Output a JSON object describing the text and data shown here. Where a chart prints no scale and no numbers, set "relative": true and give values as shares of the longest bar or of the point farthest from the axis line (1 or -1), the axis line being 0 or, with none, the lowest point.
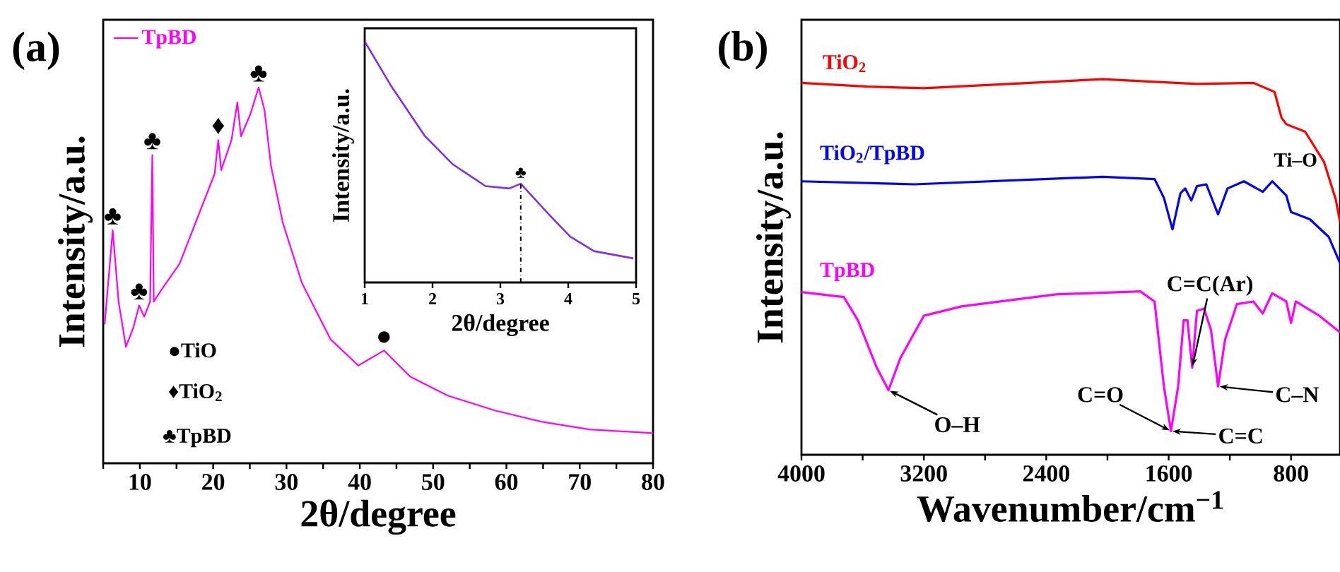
{
  "chart_data": [
    {
      "type": "line",
      "relative": true,
      "xlabel": "2θ/degree",
      "ylabel": "Intensity/a.u.",
      "legend": "top left",
      "xlim": [
        5,
        80
      ],
      "xticks": [
        {
          "value": 5,
          "label": null
        },
        10,
        {
          "value": 15,
          "label": null
        },
        20,
        {
          "value": 25,
          "label": null
        },
        30,
        {
          "value": 35,
          "label": null
        },
        40,
        {
          "value": 45,
          "label": null
        },
        50,
        {
          "value": 55,
          "label": null
        },
        60,
        {
          "value": 65,
          "label": null
        },
        70,
        {
          "value": 75,
          "label": null
        },
        80
      ],
      "series": [
        {
          "name": "TpBD",
          "color": "#ff00ff",
          "x": [
            5.2,
            6.3,
            7.1,
            8.1,
            9.1,
            9.9,
            10.6,
            11.4,
            11.7,
            11.9,
            12.9,
            15.4,
            18,
            20.2,
            20.7,
            21.1,
            22.5,
            23.3,
            23.8,
            25.1,
            26.2,
            27,
            27.9,
            29.5,
            32.1,
            36,
            39.8,
            43.3,
            46.9,
            52,
            58.5,
            64.9,
            71.3,
            80
          ],
          "values": [
            0.37,
            0.62,
            0.43,
            0.31,
            0.36,
            0.42,
            0.39,
            0.43,
            0.82,
            0.43,
            0.46,
            0.53,
            0.66,
            0.77,
            0.86,
            0.78,
            0.86,
            0.96,
            0.87,
            0.93,
            1.0,
            0.94,
            0.79,
            0.64,
            0.48,
            0.33,
            0.26,
            0.3,
            0.23,
            0.18,
            0.14,
            0.11,
            0.09,
            0.08
          ]
        }
      ],
      "annotations": [
        "(a)",
        {
          "text": "♣",
          "x": 6.3,
          "y": 0.62
        },
        {
          "text": "♣",
          "x": 9.9,
          "y": 0.42
        },
        {
          "text": "♣",
          "x": 11.7,
          "y": 0.82
        },
        {
          "text": "♦",
          "x": 20.7,
          "y": 0.86
        },
        {
          "text": "♣",
          "x": 26.2,
          "y": 1.0
        },
        {
          "text": "●",
          "x": 43.3,
          "y": 0.3
        },
        "●TiO",
        "♦TiO$_{2}$",
        "♣TpBD"
      ]
    },
    {
      "type": "line",
      "relative": true,
      "xlabel": "2θ/degree",
      "ylabel": "Intensity/a.u.",
      "xlim": [
        1,
        5
      ],
      "xticks": [
        1,
        2,
        3,
        4,
        5
      ],
      "series": [
        {
          "color": "#7f2fe8",
          "x": [
            1.0,
            1.38,
            1.88,
            2.3,
            2.78,
            3.13,
            3.3,
            3.69,
            4.03,
            4.38,
            4.96
          ],
          "values": [
            1.0,
            0.82,
            0.61,
            0.49,
            0.4,
            0.39,
            0.41,
            0.29,
            0.19,
            0.13,
            0.1
          ]
        }
      ],
      "ref_lines": [
        {
          "axis": "x",
          "value": 3.3,
          "line_style": "dashdot"
        }
      ],
      "annotations": [
        {
          "text": "♣",
          "x": 3.3,
          "y": 0.41
        }
      ]
    },
    {
      "type": "line",
      "relative": true,
      "xlabel": "Wavenumber/cm$^{−1}$",
      "ylabel": "Intensity/a.u.",
      "xlim": [
        4000,
        480
      ],
      "xticks": [
        4000,
        {
          "value": 3600,
          "label": null
        },
        3200,
        {
          "value": 2800,
          "label": null
        },
        2400,
        {
          "value": 2000,
          "label": null
        },
        1600,
        {
          "value": 1200,
          "label": null
        },
        800
      ],
      "series": [
        {
          "name": "TiO$_{2}$",
          "color": "#ff0000",
          "x": [
            4000,
            3569,
            3200,
            2646,
            2031,
            1415,
            1046,
            908,
            862,
            831,
            708,
            585,
            508,
            480
          ],
          "values": [
            0.99,
            0.98,
            0.976,
            0.987,
            1.0,
            0.987,
            0.99,
            0.966,
            0.897,
            0.88,
            0.86,
            0.78,
            0.68,
            0.62
          ]
        },
        {
          "name": "TiO$_{2}$/TpBD",
          "color": "#0000ff",
          "x": [
            4000,
            3262,
            2031,
            1692,
            1631,
            1575,
            1523,
            1492,
            1452,
            1415,
            1354,
            1277,
            1215,
            1108,
            985,
            923,
            831,
            800,
            677,
            554,
            480
          ],
          "values": [
            0.728,
            0.72,
            0.74,
            0.734,
            0.684,
            0.6,
            0.696,
            0.709,
            0.677,
            0.715,
            0.72,
            0.64,
            0.709,
            0.728,
            0.7,
            0.728,
            0.69,
            0.646,
            0.627,
            0.58,
            0.51
          ]
        },
        {
          "name": "TpBD",
          "color": "#ff00ff",
          "x": [
            4000,
            3723,
            3631,
            3508,
            3431,
            3354,
            3200,
            2954,
            2338,
            1785,
            1692,
            1631,
            1585,
            1538,
            1502,
            1477,
            1446,
            1415,
            1369,
            1323,
            1277,
            1231,
            1154,
            1046,
            985,
            923,
            831,
            800,
            769,
            615,
            480
          ],
          "values": [
            0.433,
            0.42,
            0.358,
            0.232,
            0.172,
            0.257,
            0.37,
            0.395,
            0.427,
            0.435,
            0.408,
            0.182,
            0.063,
            0.182,
            0.358,
            0.358,
            0.232,
            0.383,
            0.389,
            0.332,
            0.182,
            0.307,
            0.401,
            0.408,
            0.376,
            0.43,
            0.408,
            0.351,
            0.408,
            0.37,
            0.326
          ]
        }
      ],
      "annotations": [
        "(b)",
        {
          "text": "Ti–O",
          "x": 831,
          "y": 0.88
        },
        {
          "text": "O–H",
          "x": 3431,
          "y": 0.172
        },
        {
          "text": "C=O",
          "x": 1585,
          "y": 0.063
        },
        {
          "text": "C=C",
          "x": 1585,
          "y": 0.063
        },
        {
          "text": "C=C(Ar)",
          "x": 1446,
          "y": 0.232
        },
        {
          "text": "C–N",
          "x": 1277,
          "y": 0.182
        }
      ]
    }
  ]
}
